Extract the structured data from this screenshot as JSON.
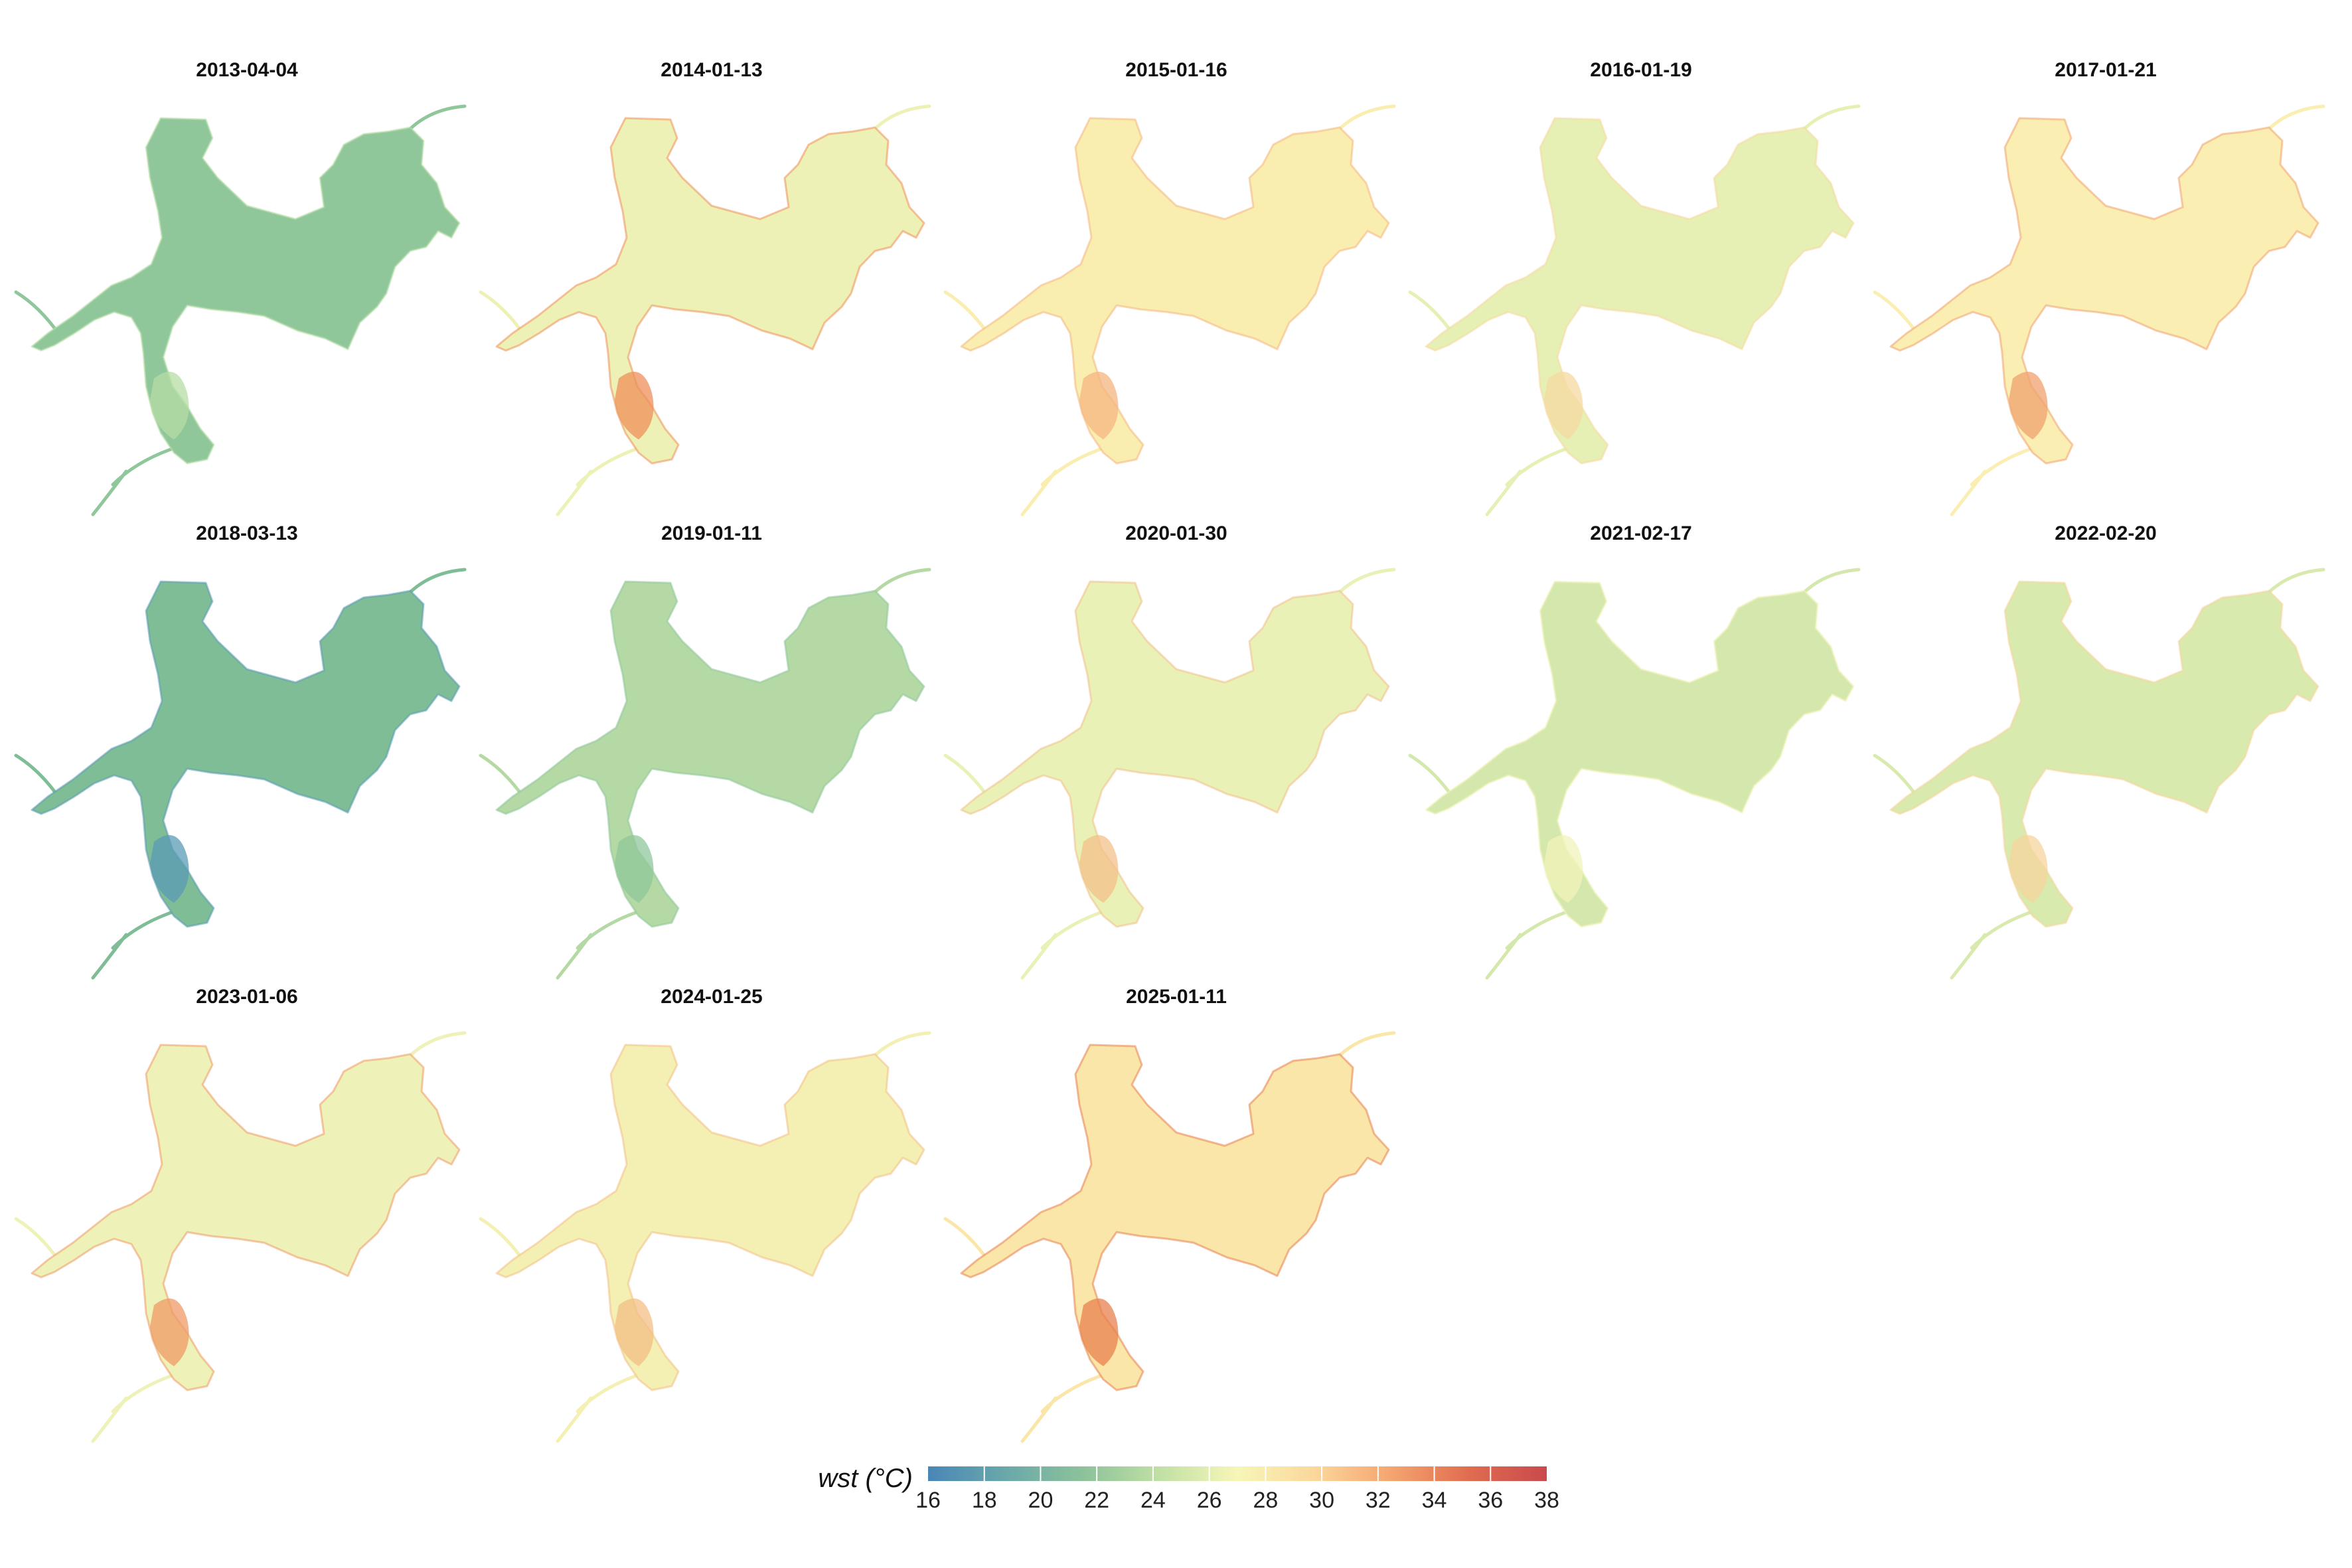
{
  "panels": [
    {
      "date": "2013-04-04",
      "fill": "#8fc79b",
      "tint": "#b6dca6"
    },
    {
      "date": "2014-01-13",
      "fill": "#eef1b5",
      "tint": "#ee8f5a"
    },
    {
      "date": "2015-01-16",
      "fill": "#faedb0",
      "tint": "#f4b680"
    },
    {
      "date": "2016-01-19",
      "fill": "#e6f0b5",
      "tint": "#f6d9a1"
    },
    {
      "date": "2017-01-21",
      "fill": "#fbeeb3",
      "tint": "#f0a26e"
    },
    {
      "date": "2018-03-13",
      "fill": "#7fbd96",
      "tint": "#5a9bb4"
    },
    {
      "date": "2019-01-11",
      "fill": "#b5d9a5",
      "tint": "#8fc79b"
    },
    {
      "date": "2020-01-30",
      "fill": "#e9f1b6",
      "tint": "#f3c08a"
    },
    {
      "date": "2021-02-17",
      "fill": "#d4e8ad",
      "tint": "#f1f3ba"
    },
    {
      "date": "2022-02-20",
      "fill": "#d9eaae",
      "tint": "#f5d49c"
    },
    {
      "date": "2023-01-06",
      "fill": "#eef2b8",
      "tint": "#ef9a65"
    },
    {
      "date": "2024-01-25",
      "fill": "#f4efb2",
      "tint": "#f3bf86"
    },
    {
      "date": "2025-01-11",
      "fill": "#fbe6a9",
      "tint": "#e8804f"
    }
  ],
  "legend": {
    "title": "wst (°C)",
    "min": 16,
    "max": 38,
    "ticks": [
      "16",
      "18",
      "20",
      "22",
      "24",
      "26",
      "28",
      "30",
      "32",
      "34",
      "36",
      "38"
    ],
    "colors": [
      "#4a86b7",
      "#6aa8aa",
      "#8cc29a",
      "#c1e0a4",
      "#f7f6b8",
      "#fbd79b",
      "#f5a46f",
      "#e06c50",
      "#c94a4c"
    ]
  }
}
